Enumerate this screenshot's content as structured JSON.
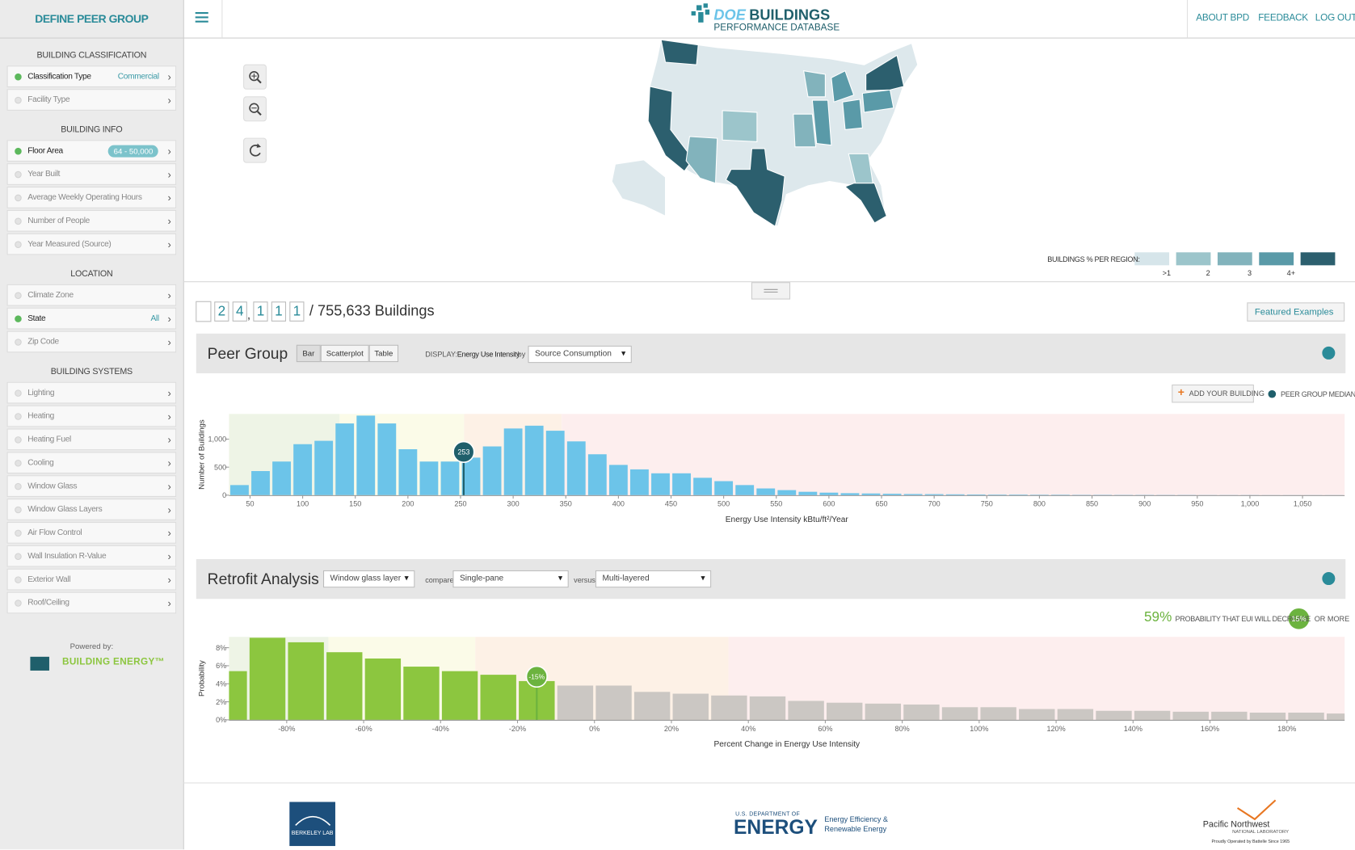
{
  "header": {
    "sidebar_title": "DEFINE PEER GROUP",
    "logo_doe": "DOE",
    "logo_buildings": "BUILDINGS",
    "logo_sub": "PERFORMANCE DATABASE",
    "nav": [
      "ABOUT BPD",
      "FEEDBACK",
      "LOG OUT"
    ]
  },
  "sidebar": {
    "sections": [
      {
        "title": "BUILDING CLASSIFICATION",
        "items": [
          {
            "label": "Classification Type",
            "value": "Commercial",
            "active": true
          },
          {
            "label": "Facility Type",
            "active": false
          }
        ]
      },
      {
        "title": "BUILDING INFO",
        "items": [
          {
            "label": "Floor Area",
            "badge": "64 - 50,000",
            "active": true
          },
          {
            "label": "Year Built",
            "active": false
          },
          {
            "label": "Average Weekly Operating Hours",
            "active": false
          },
          {
            "label": "Number of People",
            "active": false
          },
          {
            "label": "Year Measured (Source)",
            "active": false
          }
        ]
      },
      {
        "title": "LOCATION",
        "items": [
          {
            "label": "Climate Zone",
            "active": false
          },
          {
            "label": "State",
            "value": "All",
            "active": true
          },
          {
            "label": "Zip Code",
            "active": false
          }
        ]
      },
      {
        "title": "BUILDING SYSTEMS",
        "items": [
          {
            "label": "Lighting",
            "active": false
          },
          {
            "label": "Heating",
            "active": false
          },
          {
            "label": "Heating Fuel",
            "active": false
          },
          {
            "label": "Cooling",
            "active": false
          },
          {
            "label": "Window Glass",
            "active": false
          },
          {
            "label": "Window Glass Layers",
            "active": false
          },
          {
            "label": "Air Flow Control",
            "active": false
          },
          {
            "label": "Wall Insulation R-Value",
            "active": false
          },
          {
            "label": "Exterior Wall",
            "active": false
          },
          {
            "label": "Roof/Ceiling",
            "active": false
          }
        ]
      }
    ],
    "powered_by": "Powered by:",
    "brand": "BUILDING ENERGY™"
  },
  "map": {
    "legend_title": "BUILDINGS % PER REGION:",
    "legend_colors": [
      "#d6e5ea",
      "#9cc5cb",
      "#82b3bc",
      "#5a9aa8",
      "#2c5f6e"
    ],
    "legend_labels": [
      ">1",
      "2",
      "3",
      "4+"
    ]
  },
  "counter": {
    "groups": [
      [
        "2",
        "4"
      ],
      [
        "1",
        "1",
        "1"
      ]
    ],
    "separator": ",",
    "suffix": "/ 755,633 Buildings"
  },
  "featured": "Featured Examples",
  "peer_group": {
    "title": "Peer Group",
    "tabs": [
      "Bar",
      "Scatterplot",
      "Table"
    ],
    "display_label": "DISPLAY:",
    "metric": "Energy Use Intensity",
    "by": "by",
    "select": "Source Consumption",
    "add_button": "ADD YOUR BUILDING",
    "median_legend": "PEER GROUP MEDIAN",
    "chart": {
      "type": "histogram",
      "color": "#6cc4e9",
      "marker_color": "#1f5f6b",
      "marker": 253,
      "bins": [
        30,
        50,
        70,
        90,
        110,
        130,
        150,
        170,
        190,
        210,
        230,
        250,
        270,
        290,
        310,
        330,
        350,
        370,
        390,
        410,
        430,
        450,
        470,
        490,
        510,
        530,
        550,
        570,
        590,
        610,
        630,
        650,
        670,
        690,
        710,
        730,
        750,
        770,
        790,
        810,
        830,
        850,
        870,
        890,
        910,
        930,
        950,
        970,
        990,
        1010,
        1030,
        1050,
        1070,
        1090
      ],
      "counts": [
        180,
        430,
        600,
        910,
        970,
        1280,
        1420,
        1280,
        820,
        600,
        600,
        670,
        870,
        1190,
        1240,
        1150,
        960,
        730,
        540,
        460,
        390,
        390,
        310,
        250,
        180,
        120,
        90,
        60,
        45,
        35,
        30,
        25,
        20,
        18,
        15,
        12,
        10,
        10,
        8,
        8,
        6,
        6,
        5,
        5,
        4,
        4,
        3,
        3,
        3,
        2,
        2,
        2,
        2
      ],
      "xlim": [
        30,
        1090
      ],
      "ylim": [
        0,
        1450
      ],
      "xticks": [
        50,
        100,
        150,
        200,
        250,
        300,
        350,
        400,
        450,
        500,
        550,
        600,
        650,
        700,
        750,
        800,
        850,
        900,
        950,
        {
          "value": 1000,
          "label": "1,000"
        },
        {
          "value": 1050,
          "label": "1,050"
        }
      ],
      "yticks": [
        0,
        500,
        {
          "value": 1000,
          "label": "1,000"
        }
      ],
      "xlabel": "Energy Use Intensity kBtu/ft²/Year",
      "ylabel": "Number of Buildings"
    }
  },
  "retrofit": {
    "title": "Retrofit Analysis",
    "select1": "Window glass layer",
    "compare": "compare",
    "select2": "Single-pane",
    "versus": "versus",
    "select3": "Multi-layered",
    "probability": {
      "value": 59,
      "label": "59%"
    },
    "probability_text": "PROBABILITY THAT EUI WILL DECREASE",
    "threshold": {
      "value": 15,
      "label": "15%"
    },
    "or_more": "OR MORE",
    "chart": {
      "type": "histogram",
      "colors": {
        "below": "#8cc63f",
        "above": "#cbc7c3"
      },
      "marker_color": "#6cb33f",
      "marker": {
        "value": -15,
        "label": "-15%"
      },
      "bins": [
        -100,
        -90,
        -80,
        -70,
        -60,
        -50,
        -40,
        -30,
        -20,
        -10,
        0,
        10,
        20,
        30,
        40,
        50,
        60,
        70,
        80,
        90,
        100,
        110,
        120,
        130,
        140,
        150,
        160,
        170,
        180,
        190,
        200
      ],
      "counts": [
        5.4,
        9.1,
        8.6,
        7.5,
        6.8,
        5.9,
        5.4,
        5.0,
        4.3,
        3.8,
        3.8,
        3.1,
        2.9,
        2.7,
        2.6,
        2.1,
        1.9,
        1.8,
        1.7,
        1.4,
        1.4,
        1.2,
        1.2,
        1.0,
        1.0,
        0.9,
        0.9,
        0.8,
        0.8,
        0.7
      ],
      "xlim": [
        -95,
        195
      ],
      "ylim": [
        0,
        9.2
      ],
      "xticks": [
        {
          "value": -80,
          "label": "-80%"
        },
        {
          "value": -60,
          "label": "-60%"
        },
        {
          "value": -40,
          "label": "-40%"
        },
        {
          "value": -20,
          "label": "-20%"
        },
        {
          "value": 0,
          "label": "0%"
        },
        {
          "value": 20,
          "label": "20%"
        },
        {
          "value": 40,
          "label": "40%"
        },
        {
          "value": 60,
          "label": "60%"
        },
        {
          "value": 80,
          "label": "80%"
        },
        {
          "value": 100,
          "label": "100%"
        },
        {
          "value": 120,
          "label": "120%"
        },
        {
          "value": 140,
          "label": "140%"
        },
        {
          "value": 160,
          "label": "160%"
        },
        {
          "value": 180,
          "label": "180%"
        }
      ],
      "yticks": [
        {
          "value": 0,
          "label": "0%"
        },
        {
          "value": 2,
          "label": "2%"
        },
        {
          "value": 4,
          "label": "4%"
        },
        {
          "value": 6,
          "label": "6%"
        },
        {
          "value": 8,
          "label": "8%"
        }
      ],
      "xlabel": "Percent Change in Energy Use Intensity",
      "ylabel": "Probability"
    }
  },
  "footer": {
    "berkeley": "BERKELEY LAB",
    "doe_small": "U.S. DEPARTMENT OF",
    "doe_big": "ENERGY",
    "eere1": "Energy Efficiency &",
    "eere2": "Renewable Energy",
    "pnnl": "Pacific Northwest",
    "pnnl_sub": "NATIONAL LABORATORY",
    "battelle": "Proudly Operated by Battelle Since 1965"
  }
}
